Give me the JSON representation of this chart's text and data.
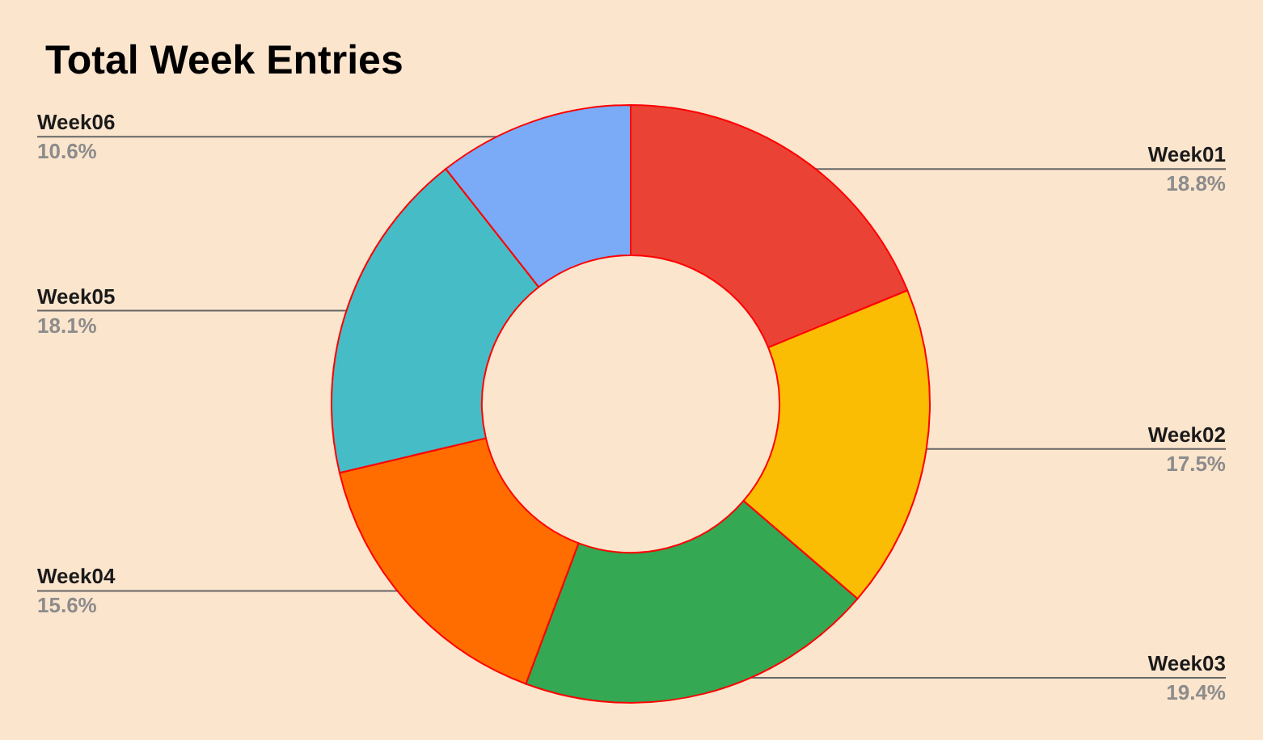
{
  "chart_data": {
    "type": "donut",
    "title": "Total Week Entries",
    "categories": [
      "Week01",
      "Week02",
      "Week03",
      "Week04",
      "Week05",
      "Week06"
    ],
    "values": [
      18.8,
      17.5,
      19.4,
      15.6,
      18.1,
      10.6
    ],
    "colors": [
      "#ea4335",
      "#fbbc04",
      "#34a853",
      "#ff6d01",
      "#46bdc6",
      "#7baaf7"
    ],
    "value_labels": [
      "18.8%",
      "17.5%",
      "19.4%",
      "15.6%",
      "18.1%",
      "10.6%"
    ]
  }
}
